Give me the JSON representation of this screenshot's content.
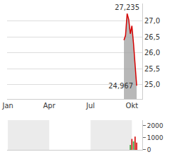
{
  "chart_data": {
    "type": "line",
    "categories": [
      "Jan",
      null,
      null,
      null,
      null,
      null,
      null,
      null,
      null,
      null,
      null,
      null,
      null,
      null,
      null,
      null,
      null,
      null,
      null,
      null,
      null,
      null,
      null,
      null,
      null,
      null,
      "Apr",
      null,
      null,
      null,
      null,
      null,
      null,
      null,
      null,
      null,
      null,
      null,
      null,
      null,
      null,
      null,
      null,
      null,
      null,
      null,
      null,
      null,
      null,
      null,
      null,
      null,
      "Jul",
      null,
      null,
      null,
      null,
      null,
      null,
      null,
      null,
      null,
      null,
      null,
      null,
      null,
      null,
      null,
      null,
      null,
      null,
      null,
      null,
      null,
      null,
      null,
      null,
      null,
      "Okt",
      null,
      null,
      null,
      null,
      null,
      null
    ],
    "series": [
      {
        "type": "area",
        "color": "#d40000",
        "values": [
          null,
          null,
          null,
          null,
          null,
          null,
          null,
          null,
          null,
          null,
          null,
          null,
          null,
          null,
          null,
          null,
          null,
          null,
          null,
          null,
          null,
          null,
          null,
          null,
          null,
          null,
          null,
          null,
          null,
          null,
          null,
          null,
          null,
          null,
          null,
          null,
          null,
          null,
          null,
          null,
          null,
          null,
          null,
          null,
          null,
          null,
          null,
          null,
          null,
          null,
          null,
          null,
          null,
          null,
          null,
          null,
          null,
          null,
          null,
          null,
          null,
          null,
          null,
          null,
          null,
          null,
          null,
          null,
          null,
          null,
          null,
          null,
          null,
          26.4,
          26.55,
          27.235,
          27.05,
          26.6,
          26.85,
          26.3,
          25.6,
          24.967,
          null,
          null,
          null
        ]
      },
      {
        "type": "bar",
        "axis": "y2",
        "values": [
          null,
          null,
          null,
          null,
          null,
          null,
          null,
          null,
          null,
          null,
          null,
          null,
          null,
          null,
          null,
          null,
          null,
          null,
          null,
          null,
          null,
          null,
          null,
          null,
          null,
          null,
          null,
          null,
          null,
          null,
          null,
          null,
          null,
          null,
          null,
          null,
          null,
          null,
          null,
          null,
          null,
          null,
          null,
          null,
          null,
          null,
          null,
          null,
          null,
          null,
          null,
          null,
          null,
          null,
          null,
          null,
          null,
          null,
          null,
          null,
          null,
          null,
          null,
          null,
          null,
          null,
          null,
          null,
          null,
          null,
          null,
          null,
          null,
          null,
          null,
          null,
          null,
          400,
          900,
          700,
          1100,
          600,
          null,
          null,
          null
        ],
        "colors": [
          null,
          null,
          null,
          null,
          null,
          null,
          null,
          null,
          null,
          null,
          null,
          null,
          null,
          null,
          null,
          null,
          null,
          null,
          null,
          null,
          null,
          null,
          null,
          null,
          null,
          null,
          null,
          null,
          null,
          null,
          null,
          null,
          null,
          null,
          null,
          null,
          null,
          null,
          null,
          null,
          null,
          null,
          null,
          null,
          null,
          null,
          null,
          null,
          null,
          null,
          null,
          null,
          null,
          null,
          null,
          null,
          null,
          null,
          null,
          null,
          null,
          null,
          null,
          null,
          null,
          null,
          null,
          null,
          null,
          null,
          null,
          null,
          null,
          null,
          null,
          null,
          null,
          "#2ca02c",
          "#d40000",
          "#2ca02c",
          "#d40000",
          "#d40000",
          null,
          null,
          null
        ]
      }
    ],
    "ylim": [
      24.55,
      27.55
    ],
    "yticks": [
      {
        "value": 25,
        "label": "25,0"
      },
      {
        "value": 25.5,
        "label": "25,5"
      },
      {
        "value": 26,
        "label": "26,0"
      },
      {
        "value": 26.5,
        "label": "26,5"
      },
      {
        "value": 27,
        "label": "27,0"
      }
    ],
    "y2lim": [
      0,
      2450
    ],
    "y2ticks": [
      0,
      1000,
      2000
    ],
    "annotations": [
      {
        "text": "27,235",
        "x": 75,
        "y": 27.235
      },
      {
        "text": "24,967",
        "x": 81,
        "y": 24.967
      }
    ],
    "grid": true
  }
}
